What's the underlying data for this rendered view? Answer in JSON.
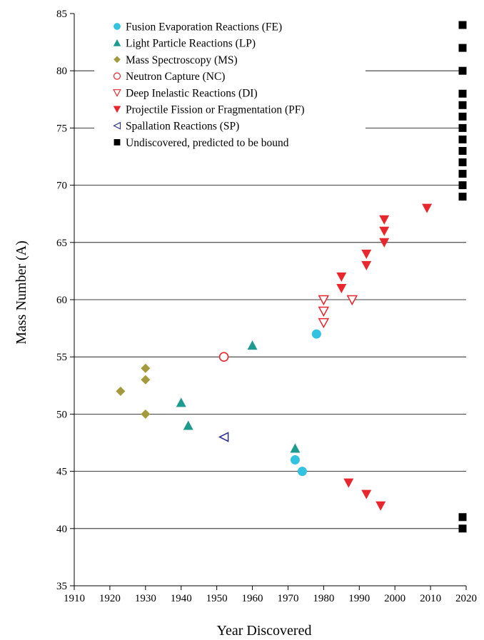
{
  "chart_data": {
    "type": "scatter",
    "title": "",
    "xlabel": "Year Discovered",
    "ylabel": "Mass Number (A)",
    "xlim": [
      1910,
      2020
    ],
    "ylim": [
      35,
      85
    ],
    "x_ticks": [
      1910,
      1920,
      1930,
      1940,
      1950,
      1960,
      1970,
      1980,
      1990,
      2000,
      2010,
      2020
    ],
    "y_ticks": [
      35,
      40,
      45,
      50,
      55,
      60,
      65,
      70,
      75,
      80,
      85
    ],
    "grid": "horizontal",
    "legend_position": "top-left",
    "series": [
      {
        "name": "Fusion Evaporation Reactions (FE)",
        "marker": "circle-filled",
        "color": "#33c3e0",
        "points": [
          [
            1972,
            46
          ],
          [
            1974,
            45
          ],
          [
            1978,
            57
          ]
        ]
      },
      {
        "name": "Light Particle Reactions (LP)",
        "marker": "triangle-up-filled",
        "color": "#1e9a8e",
        "points": [
          [
            1940,
            51
          ],
          [
            1942,
            49
          ],
          [
            1960,
            56
          ],
          [
            1972,
            47
          ]
        ]
      },
      {
        "name": "Mass Spectroscopy (MS)",
        "marker": "diamond-filled",
        "color": "#a39a3c",
        "points": [
          [
            1923,
            52
          ],
          [
            1930,
            50
          ],
          [
            1930,
            53
          ],
          [
            1930,
            54
          ]
        ]
      },
      {
        "name": "Neutron Capture (NC)",
        "marker": "circle-open",
        "color": "#e8262e",
        "points": [
          [
            1952,
            55
          ]
        ]
      },
      {
        "name": "Deep Inelastic Reactions (DI)",
        "marker": "triangle-down-open",
        "color": "#e8262e",
        "points": [
          [
            1980,
            58
          ],
          [
            1980,
            59
          ],
          [
            1980,
            60
          ],
          [
            1988,
            60
          ]
        ]
      },
      {
        "name": "Projectile Fission or Fragmentation (PF)",
        "marker": "triangle-down-filled",
        "color": "#e8262e",
        "points": [
          [
            1985,
            61
          ],
          [
            1985,
            62
          ],
          [
            1987,
            44
          ],
          [
            1992,
            43
          ],
          [
            1992,
            63
          ],
          [
            1992,
            64
          ],
          [
            1996,
            42
          ],
          [
            1997,
            65
          ],
          [
            1997,
            66
          ],
          [
            1997,
            67
          ],
          [
            2009,
            68
          ]
        ]
      },
      {
        "name": "Spallation Reactions (SP)",
        "marker": "triangle-left-open",
        "color": "#2b2e8a",
        "points": [
          [
            1952,
            48
          ]
        ]
      },
      {
        "name": "Undiscovered, predicted to be bound",
        "marker": "square-filled",
        "color": "#000000",
        "points": [
          [
            2019,
            40
          ],
          [
            2019,
            41
          ],
          [
            2019,
            69
          ],
          [
            2019,
            70
          ],
          [
            2019,
            71
          ],
          [
            2019,
            72
          ],
          [
            2019,
            73
          ],
          [
            2019,
            74
          ],
          [
            2019,
            75
          ],
          [
            2019,
            76
          ],
          [
            2019,
            77
          ],
          [
            2019,
            78
          ],
          [
            2019,
            80
          ],
          [
            2019,
            82
          ],
          [
            2019,
            84
          ]
        ]
      }
    ]
  }
}
